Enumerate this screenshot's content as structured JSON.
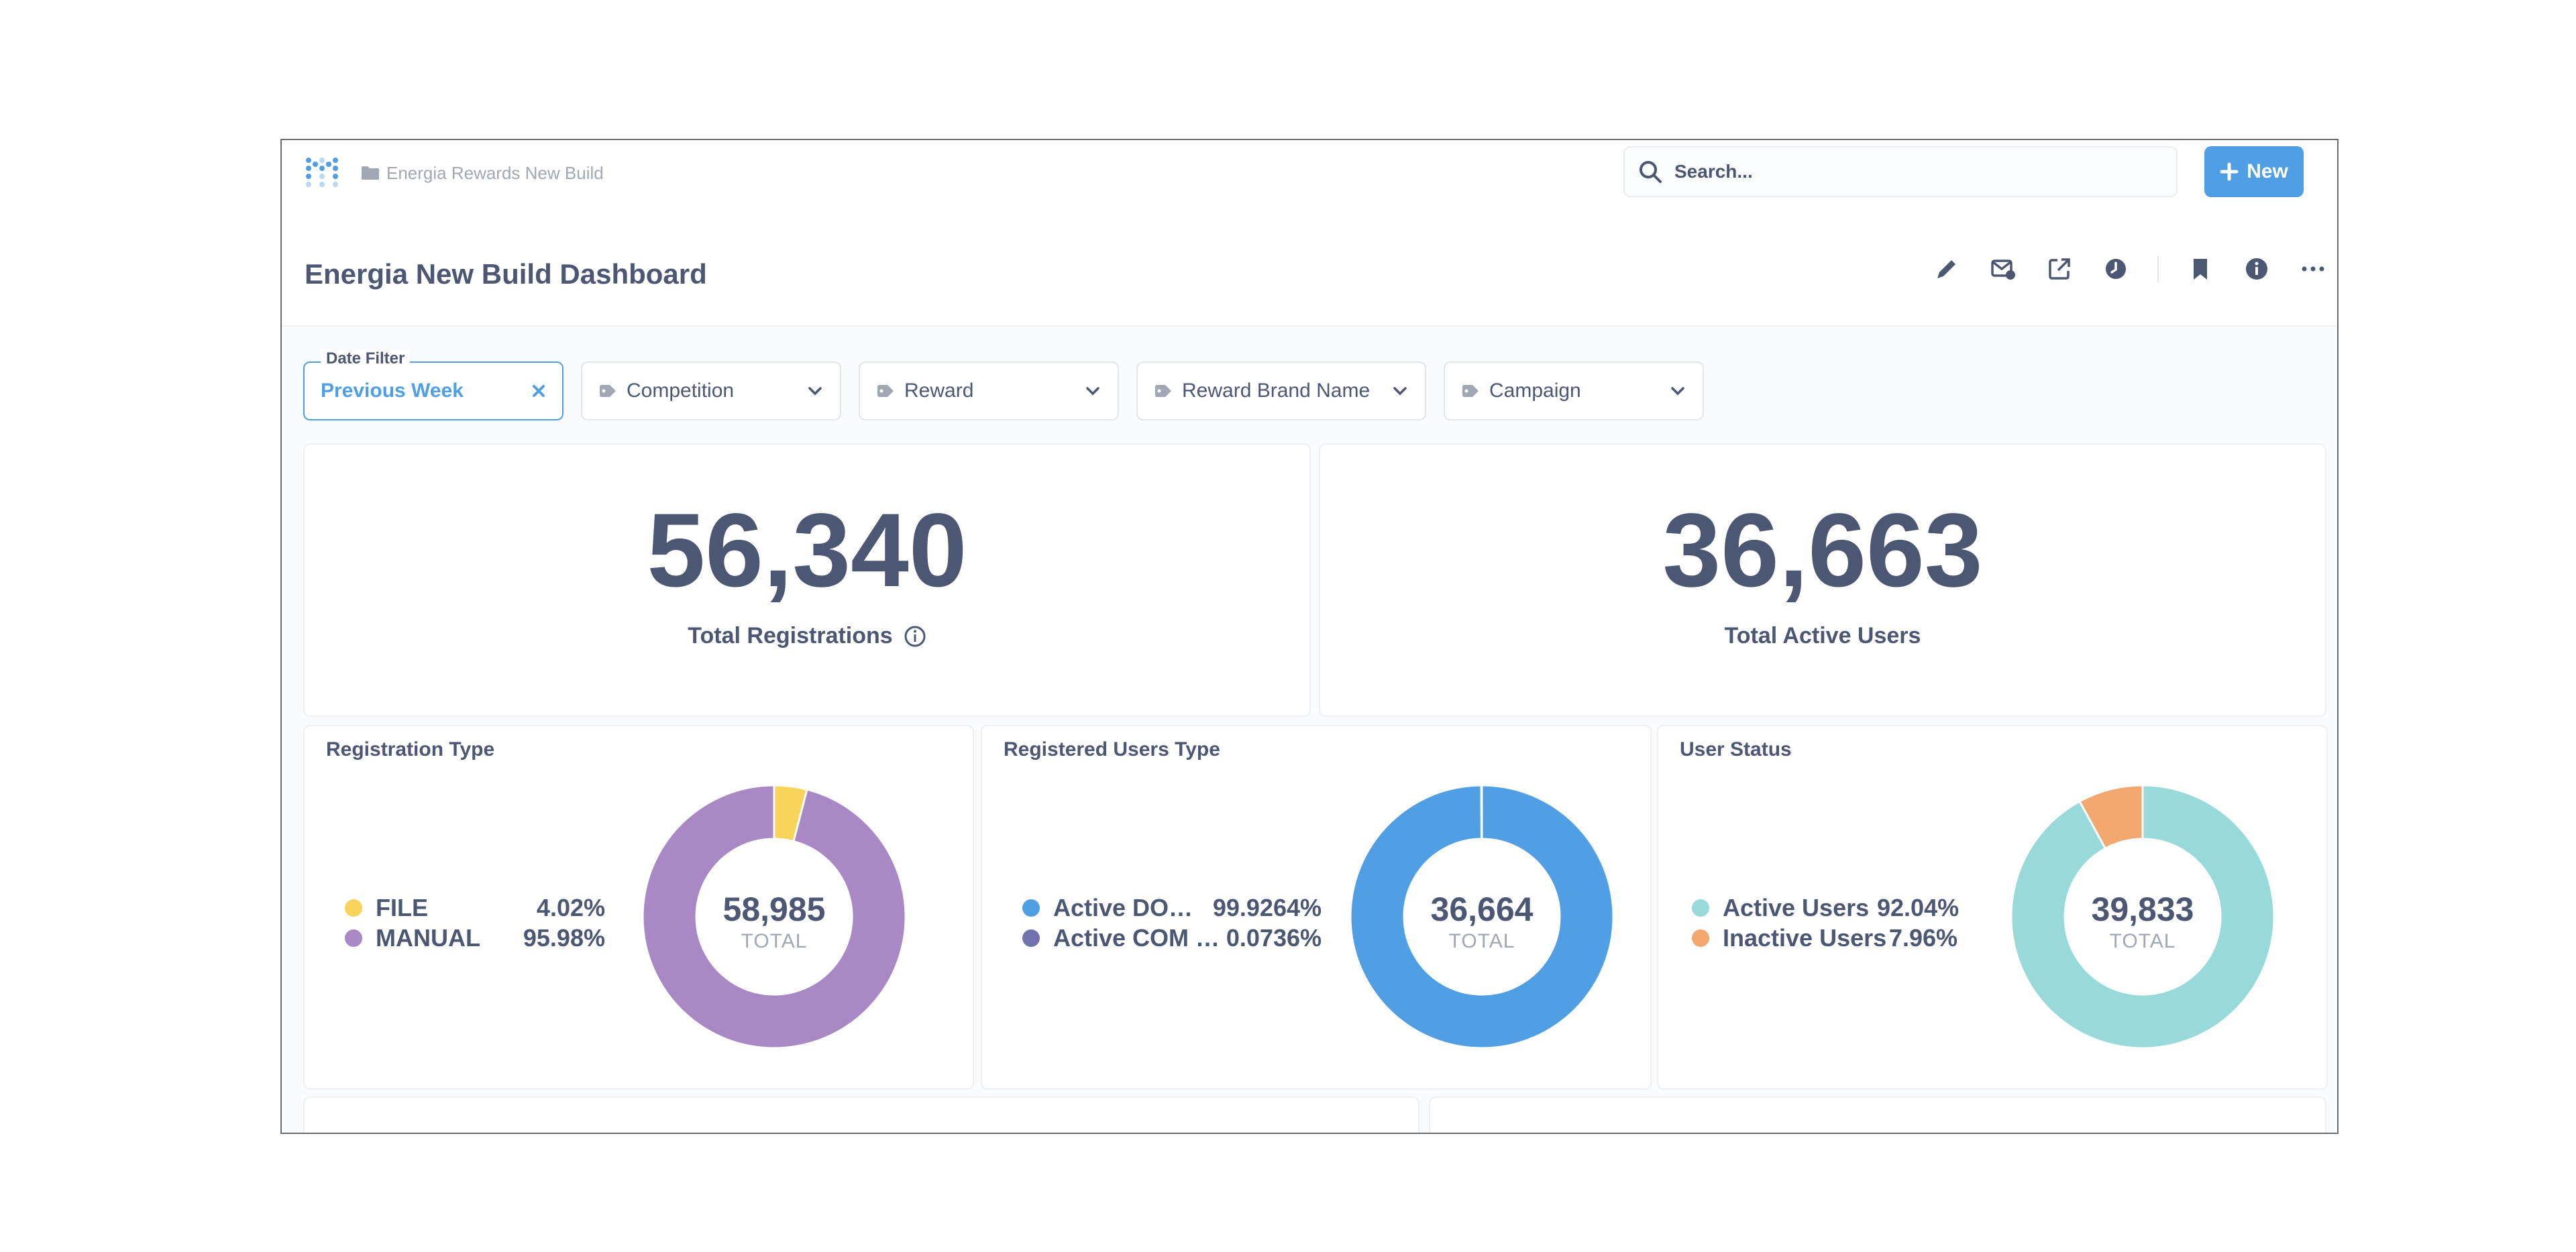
{
  "breadcrumb": {
    "collection": "Energia Rewards New Build"
  },
  "search": {
    "placeholder": "Search..."
  },
  "new_button": {
    "label": "New"
  },
  "dashboard": {
    "title": "Energia New Build Dashboard"
  },
  "header_actions": [
    "pencil-icon",
    "subscription-icon",
    "share-icon",
    "history-icon",
    "bookmark-icon",
    "info-icon",
    "more-icon"
  ],
  "filters": [
    {
      "legend": "Date Filter",
      "label": "Previous Week",
      "active": true
    },
    {
      "label": "Competition"
    },
    {
      "label": "Reward"
    },
    {
      "label": "Reward Brand Name"
    },
    {
      "label": "Campaign"
    }
  ],
  "scalars": [
    {
      "value": "56,340",
      "label": "Total Registrations"
    },
    {
      "value": "36,663",
      "label": "Total Active Users"
    }
  ],
  "colors": {
    "accent": "#509ee3",
    "file": "#f9d45c",
    "manual": "#a989c5",
    "active_do": "#509ee3",
    "active_com": "#7172ad",
    "active_users": "#98d9d9",
    "inactive_users": "#f2a86f"
  },
  "chart_data": [
    {
      "type": "pie",
      "title": "Registration Type",
      "categories": [
        "FILE",
        "MANUAL"
      ],
      "values": [
        4.02,
        95.98
      ],
      "value_labels": [
        "4.02%",
        "95.98%"
      ],
      "colors": [
        "#f9d45c",
        "#a989c5"
      ],
      "center_value": "58,985",
      "center_label": "TOTAL"
    },
    {
      "type": "pie",
      "title": "Registered Users Type",
      "categories": [
        "Active DO…",
        "Active COM …"
      ],
      "values": [
        99.9264,
        0.0736
      ],
      "value_labels": [
        "99.9264%",
        "0.0736%"
      ],
      "colors": [
        "#509ee3",
        "#7172ad"
      ],
      "center_value": "36,664",
      "center_label": "TOTAL"
    },
    {
      "type": "pie",
      "title": "User Status",
      "categories": [
        "Active Users",
        "Inactive Users"
      ],
      "values": [
        92.04,
        7.96
      ],
      "value_labels": [
        "92.04%",
        "7.96%"
      ],
      "colors": [
        "#98d9d9",
        "#f2a86f"
      ],
      "center_value": "39,833",
      "center_label": "TOTAL"
    }
  ]
}
